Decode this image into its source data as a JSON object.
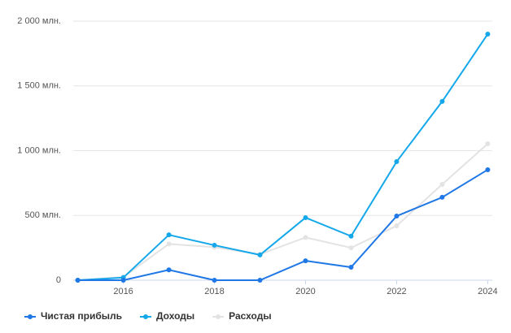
{
  "chart_data": {
    "type": "line",
    "x": [
      2015,
      2016,
      2017,
      2018,
      2019,
      2020,
      2021,
      2022,
      2023,
      2024
    ],
    "series": [
      {
        "name": "Чистая прибыль",
        "color": "#1f78e6",
        "values": [
          0,
          0,
          80,
          0,
          0,
          150,
          100,
          495,
          640,
          853
        ]
      },
      {
        "name": "Доходы",
        "color": "#14a8ea",
        "values": [
          0,
          20,
          350,
          270,
          195,
          483,
          340,
          915,
          1380,
          1900
        ]
      },
      {
        "name": "Расходы",
        "color": "#e3e3e3",
        "values": [
          0,
          25,
          280,
          255,
          200,
          330,
          250,
          420,
          740,
          1053
        ]
      }
    ],
    "xlim": [
      2014.9,
      2024.1
    ],
    "xticks": [
      2016,
      2018,
      2020,
      2022,
      2024
    ],
    "ylim": [
      0,
      2000
    ],
    "yticks": [
      0,
      {
        "value": 500,
        "label": "500 млн."
      },
      {
        "value": 1000,
        "label": "1 000 млн."
      },
      {
        "value": 1500,
        "label": "1 500 млн."
      },
      {
        "value": 2000,
        "label": "2 000 млн."
      }
    ],
    "grid": true,
    "legend": "bottom"
  }
}
